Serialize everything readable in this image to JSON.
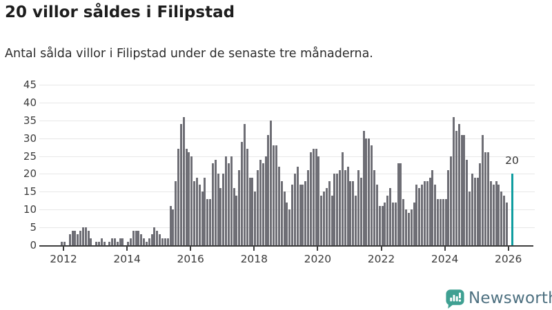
{
  "header": {
    "title": "20 villor såldes i Filipstad",
    "subtitle": "Antal sålda villor i Filipstad under de senaste tre månaderna."
  },
  "chart_data": {
    "type": "bar",
    "title": "20 villor såldes i Filipstad",
    "xlabel": "",
    "ylabel": "",
    "start_month": "2011-12",
    "end_month": "2026-02",
    "frequency": "monthly",
    "values": [
      1,
      1,
      0,
      3,
      4,
      4,
      3,
      4,
      5,
      5,
      4,
      2,
      0,
      1,
      1,
      2,
      1,
      0,
      1,
      2,
      2,
      1,
      2,
      2,
      0,
      1,
      2,
      4,
      4,
      4,
      3,
      2,
      1,
      2,
      3,
      5,
      4,
      3,
      2,
      2,
      2,
      11,
      10,
      18,
      27,
      34,
      36,
      27,
      26,
      25,
      18,
      19,
      17,
      15,
      19,
      13,
      13,
      23,
      24,
      20,
      16,
      20,
      25,
      23,
      25,
      16,
      14,
      21,
      29,
      34,
      27,
      19,
      19,
      15,
      21,
      24,
      23,
      25,
      31,
      35,
      28,
      28,
      22,
      18,
      15,
      12,
      10,
      17,
      20,
      22,
      17,
      17,
      18,
      21,
      26,
      27,
      27,
      25,
      14,
      15,
      16,
      18,
      14,
      20,
      20,
      21,
      26,
      21,
      22,
      18,
      18,
      14,
      21,
      19,
      32,
      30,
      30,
      28,
      21,
      17,
      11,
      11,
      12,
      14,
      16,
      12,
      12,
      23,
      23,
      13,
      10,
      9,
      10,
      12,
      17,
      16,
      17,
      18,
      18,
      19,
      21,
      17,
      13,
      13,
      13,
      13,
      21,
      25,
      36,
      32,
      34,
      31,
      31,
      24,
      15,
      20,
      19,
      19,
      23,
      31,
      26,
      26,
      18,
      17,
      18,
      17,
      15,
      14,
      12,
      0,
      20
    ],
    "ylim": [
      0,
      45
    ],
    "y_ticks": [
      0,
      5,
      10,
      15,
      20,
      25,
      30,
      35,
      40,
      45
    ],
    "x_tick_labels": [
      "2012",
      "2014",
      "2016",
      "2018",
      "2020",
      "2022",
      "2024",
      "2026"
    ],
    "grid": "horizontal",
    "legend": "none",
    "bar_color": "#6E6E75",
    "highlight": {
      "index": 170,
      "value": 20,
      "label": "20",
      "color": "#0F9DA0"
    }
  },
  "footer": {
    "brand": "Newsworthy",
    "logo_icon": "newsworthy-speech-bubble-chart-icon",
    "brand_text_color": "#4D7080",
    "icon_color": "#3FA092"
  }
}
